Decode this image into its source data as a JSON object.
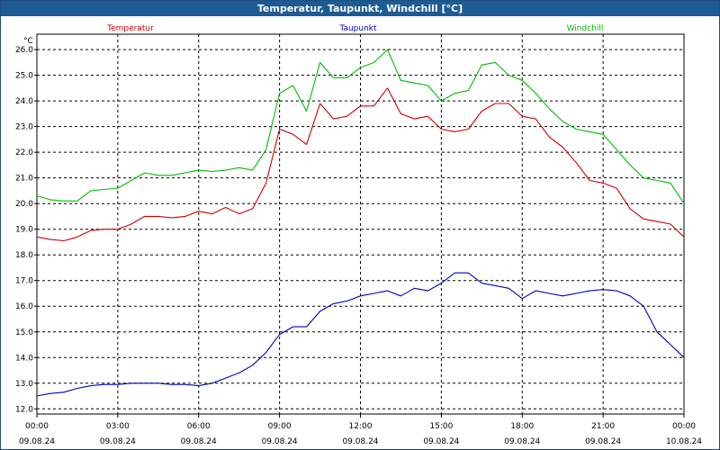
{
  "window": {
    "title": "Temperatur, Taupunkt, Windchill [°C]"
  },
  "chart_data": {
    "type": "line",
    "title": "Temperatur, Taupunkt, Windchill [°C]",
    "ylabel": "°C",
    "xlabel": "",
    "ylim": [
      11.8,
      26.6
    ],
    "xlim": [
      0,
      24
    ],
    "grid": true,
    "y_ticks": [
      "26.0",
      "25.0",
      "24.0",
      "23.0",
      "22.0",
      "21.0",
      "20.0",
      "19.0",
      "18.0",
      "17.0",
      "16.0",
      "15.0",
      "14.0",
      "13.0",
      "12.0"
    ],
    "x_ticks": [
      {
        "time": "00:00",
        "date": "09.08.24"
      },
      {
        "time": "03:00",
        "date": "09.08.24"
      },
      {
        "time": "06:00",
        "date": "09.08.24"
      },
      {
        "time": "09:00",
        "date": "09.08.24"
      },
      {
        "time": "12:00",
        "date": "09.08.24"
      },
      {
        "time": "15:00",
        "date": "09.08.24"
      },
      {
        "time": "18:00",
        "date": "09.08.24"
      },
      {
        "time": "21:00",
        "date": "09.08.24"
      },
      {
        "time": "00:00",
        "date": "10.08.24"
      }
    ],
    "series": [
      {
        "name": "Temperatur",
        "color": "#cc0000",
        "x": [
          0,
          0.5,
          1,
          1.5,
          2,
          2.5,
          3,
          3.5,
          4,
          4.5,
          5,
          5.5,
          6,
          6.5,
          7,
          7.5,
          8,
          8.5,
          9,
          9.5,
          10,
          10.5,
          11,
          11.5,
          12,
          12.5,
          13,
          13.5,
          14,
          14.5,
          15,
          15.5,
          16,
          16.5,
          17,
          17.5,
          18,
          18.5,
          19,
          19.5,
          20,
          20.5,
          21,
          21.5,
          22,
          22.5,
          23,
          23.5,
          24
        ],
        "values": [
          18.7,
          18.6,
          18.55,
          18.7,
          18.95,
          19.0,
          19.0,
          19.2,
          19.5,
          19.5,
          19.45,
          19.5,
          19.7,
          19.6,
          19.85,
          19.6,
          19.8,
          20.8,
          22.9,
          22.7,
          22.3,
          23.9,
          23.3,
          23.4,
          23.8,
          23.8,
          24.5,
          23.5,
          23.3,
          23.4,
          22.9,
          22.8,
          22.9,
          23.6,
          23.9,
          23.9,
          23.4,
          23.3,
          22.6,
          22.2,
          21.6,
          20.9,
          20.8,
          20.6,
          19.8,
          19.4,
          19.3,
          19.2,
          18.7
        ]
      },
      {
        "name": "Taupunkt",
        "color": "#0000bb",
        "x": [
          0,
          0.5,
          1,
          1.5,
          2,
          2.5,
          3,
          3.5,
          4,
          4.5,
          5,
          5.5,
          6,
          6.5,
          7,
          7.5,
          8,
          8.5,
          9,
          9.5,
          10,
          10.5,
          11,
          11.5,
          12,
          12.5,
          13,
          13.5,
          14,
          14.5,
          15,
          15.5,
          16,
          16.5,
          17,
          17.5,
          18,
          18.5,
          19,
          19.5,
          20,
          20.5,
          21,
          21.5,
          22,
          22.5,
          23,
          23.5,
          24
        ],
        "values": [
          12.5,
          12.6,
          12.65,
          12.8,
          12.9,
          12.95,
          12.95,
          13.0,
          13.0,
          13.0,
          12.95,
          12.95,
          12.9,
          13.0,
          13.2,
          13.4,
          13.7,
          14.2,
          14.9,
          15.2,
          15.2,
          15.8,
          16.1,
          16.2,
          16.4,
          16.5,
          16.6,
          16.4,
          16.7,
          16.6,
          16.9,
          17.3,
          17.3,
          16.9,
          16.8,
          16.7,
          16.3,
          16.6,
          16.5,
          16.4,
          16.5,
          16.6,
          16.65,
          16.6,
          16.4,
          16.0,
          15.0,
          14.5,
          14.0
        ]
      },
      {
        "name": "Windchill",
        "color": "#00bb00",
        "x": [
          0,
          0.5,
          1,
          1.5,
          2,
          2.5,
          3,
          3.5,
          4,
          4.5,
          5,
          5.5,
          6,
          6.5,
          7,
          7.5,
          8,
          8.5,
          9,
          9.5,
          10,
          10.5,
          11,
          11.5,
          12,
          12.5,
          13,
          13.5,
          14,
          14.5,
          15,
          15.5,
          16,
          16.5,
          17,
          17.5,
          18,
          18.5,
          19,
          19.5,
          20,
          20.5,
          21,
          21.5,
          22,
          22.5,
          23,
          23.5,
          24
        ],
        "values": [
          20.3,
          20.15,
          20.1,
          20.1,
          20.5,
          20.55,
          20.6,
          20.9,
          21.2,
          21.1,
          21.1,
          21.2,
          21.3,
          21.25,
          21.3,
          21.4,
          21.3,
          22.1,
          24.3,
          24.6,
          23.6,
          25.5,
          24.9,
          24.9,
          25.3,
          25.5,
          26.0,
          24.8,
          24.7,
          24.6,
          24.0,
          24.3,
          24.4,
          25.4,
          25.5,
          25.0,
          24.8,
          24.3,
          23.7,
          23.2,
          22.9,
          22.8,
          22.7,
          22.1,
          21.5,
          21.0,
          20.9,
          20.8,
          20.0
        ]
      }
    ]
  }
}
